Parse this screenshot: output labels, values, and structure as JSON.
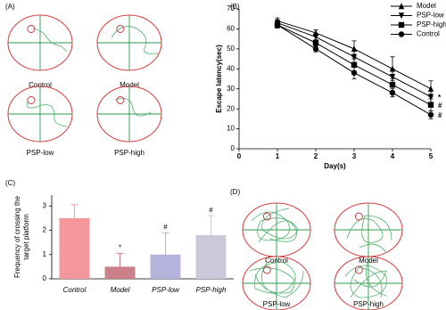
{
  "chart_data": [
    {
      "panel": "(B)",
      "type": "line",
      "ylabel": "Escape latency(sec)",
      "xlabel": "Day(s)",
      "x": [
        1,
        2,
        3,
        4,
        5
      ],
      "xlim": [
        0,
        5
      ],
      "xticks": [
        0,
        1,
        2,
        3,
        4,
        5
      ],
      "ylim": [
        0,
        70
      ],
      "yticks": [
        0,
        10,
        20,
        30,
        40,
        50,
        60,
        70
      ],
      "legend": "top-right",
      "series": [
        {
          "name": "Model",
          "color": "#000000",
          "marker": "triangle-up",
          "values": [
            64,
            58,
            50,
            40,
            30
          ],
          "errors": [
            1.5,
            1.5,
            4,
            6,
            4
          ]
        },
        {
          "name": "PSP-low",
          "color": "#000000",
          "marker": "triangle-down",
          "values": [
            63,
            56,
            46,
            36,
            26
          ],
          "errors": [
            1.5,
            1.5,
            3,
            4,
            3
          ],
          "annotation": "*"
        },
        {
          "name": "PSP-high",
          "color": "#000000",
          "marker": "square",
          "values": [
            62,
            53,
            42,
            32,
            22
          ],
          "errors": [
            1.5,
            1.5,
            3,
            3,
            3
          ],
          "annotation": "#"
        },
        {
          "name": "Control",
          "color": "#000000",
          "marker": "circle",
          "values": [
            62,
            50,
            38,
            28,
            17
          ],
          "errors": [
            1.5,
            1.5,
            3,
            2,
            2
          ],
          "annotation": "#"
        }
      ]
    },
    {
      "panel": "(C)",
      "type": "bar",
      "ylabel": [
        "Frequency of crossing the",
        "target platform"
      ],
      "categories": [
        "Control",
        "Model",
        "PSP-low",
        "PSP-high"
      ],
      "values": [
        2.5,
        0.5,
        1.0,
        1.8
      ],
      "errors": [
        0.55,
        0.55,
        0.9,
        0.8
      ],
      "colors": [
        "#f4979c",
        "#c98088",
        "#b3b3dc",
        "#c9c9d9"
      ],
      "annotations": [
        null,
        "*",
        "#",
        "#"
      ],
      "ylim": [
        0,
        3.45
      ],
      "yticks": [
        0,
        1,
        2,
        3
      ]
    }
  ],
  "diagrams": [
    {
      "panel": "(A)",
      "labels": [
        "Control",
        "Model",
        "PSP-low",
        "PSP-high"
      ]
    },
    {
      "panel": "(D)",
      "labels": [
        "Control",
        "Model",
        "PSP-low",
        "PSP-high"
      ]
    }
  ]
}
